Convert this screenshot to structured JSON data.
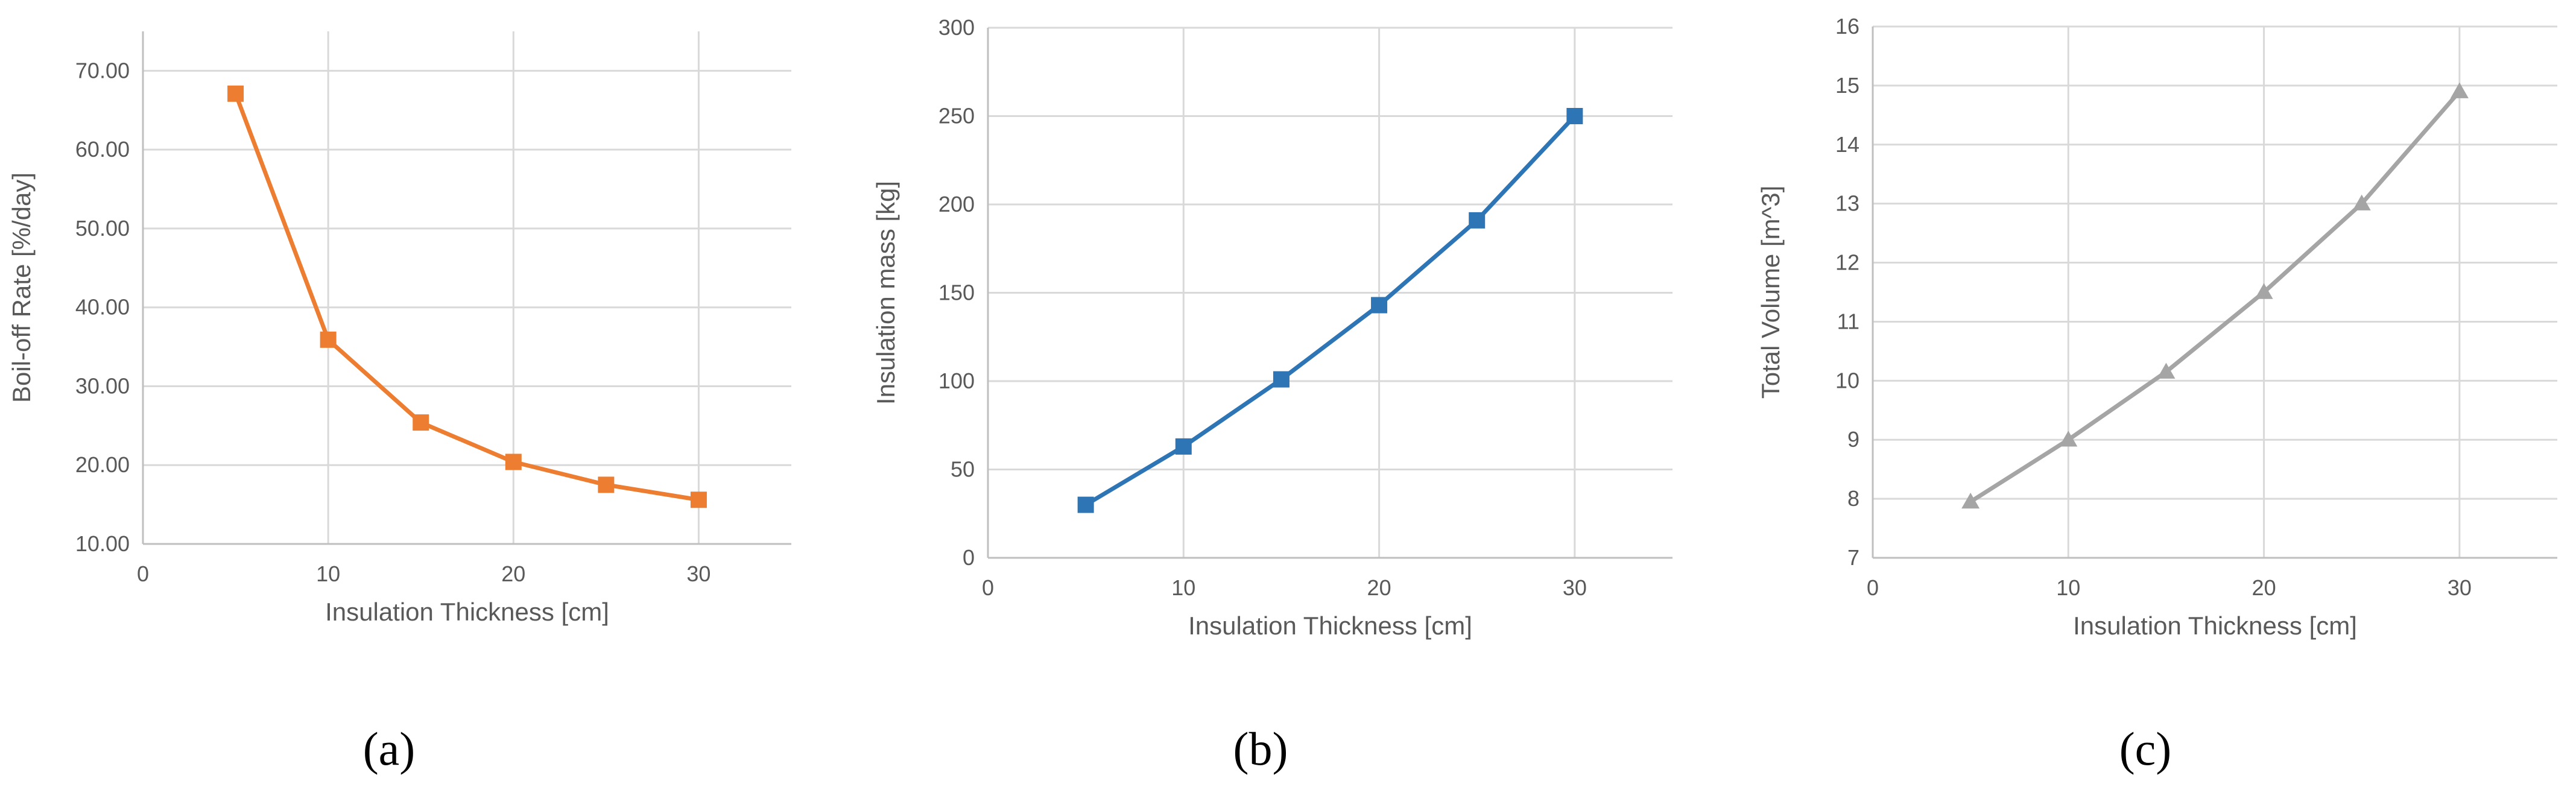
{
  "chart_data": [
    {
      "type": "line",
      "panel_label": "(a)",
      "xlabel": "Insulation Thickness [cm]",
      "ylabel": "Boil-off Rate [%/day]",
      "xlim": [
        0,
        35
      ],
      "ylim": [
        10,
        75
      ],
      "xticks": [
        0,
        10,
        20,
        30
      ],
      "yticks": [
        10,
        20,
        30,
        40,
        50,
        60,
        70
      ],
      "ytick_labels": [
        "10.00",
        "20.00",
        "30.00",
        "40.00",
        "50.00",
        "60.00",
        "70.00"
      ],
      "grid": true,
      "marker": "square",
      "color": "#ED7D31",
      "x": [
        5,
        10,
        15,
        20,
        25,
        30
      ],
      "y": [
        67.1,
        35.9,
        25.4,
        20.4,
        17.5,
        15.6
      ]
    },
    {
      "type": "line",
      "panel_label": "(b)",
      "xlabel": "Insulation Thickness [cm]",
      "ylabel": "Insulation mass [kg]",
      "xlim": [
        0,
        35
      ],
      "ylim": [
        0,
        300
      ],
      "xticks": [
        0,
        10,
        20,
        30
      ],
      "yticks": [
        0,
        50,
        100,
        150,
        200,
        250,
        300
      ],
      "ytick_labels": [
        "0",
        "50",
        "100",
        "150",
        "200",
        "250",
        "300"
      ],
      "grid": true,
      "marker": "square",
      "color": "#2E75B6",
      "x": [
        5,
        10,
        15,
        20,
        25,
        30
      ],
      "y": [
        30,
        63,
        101,
        143,
        191,
        250
      ]
    },
    {
      "type": "line",
      "panel_label": "(c)",
      "xlabel": "Insulation Thickness [cm]",
      "ylabel": "Total Volume [m^3]",
      "xlim": [
        0,
        35
      ],
      "ylim": [
        7,
        16
      ],
      "xticks": [
        0,
        10,
        20,
        30
      ],
      "yticks": [
        7,
        8,
        9,
        10,
        11,
        12,
        13,
        14,
        15,
        16
      ],
      "ytick_labels": [
        "7",
        "8",
        "9",
        "10",
        "11",
        "12",
        "13",
        "14",
        "15",
        "16"
      ],
      "grid": true,
      "marker": "triangle",
      "color": "#A5A5A5",
      "x": [
        5,
        10,
        15,
        20,
        25,
        30
      ],
      "y": [
        7.95,
        9.0,
        10.15,
        11.5,
        13.0,
        14.9
      ]
    }
  ]
}
